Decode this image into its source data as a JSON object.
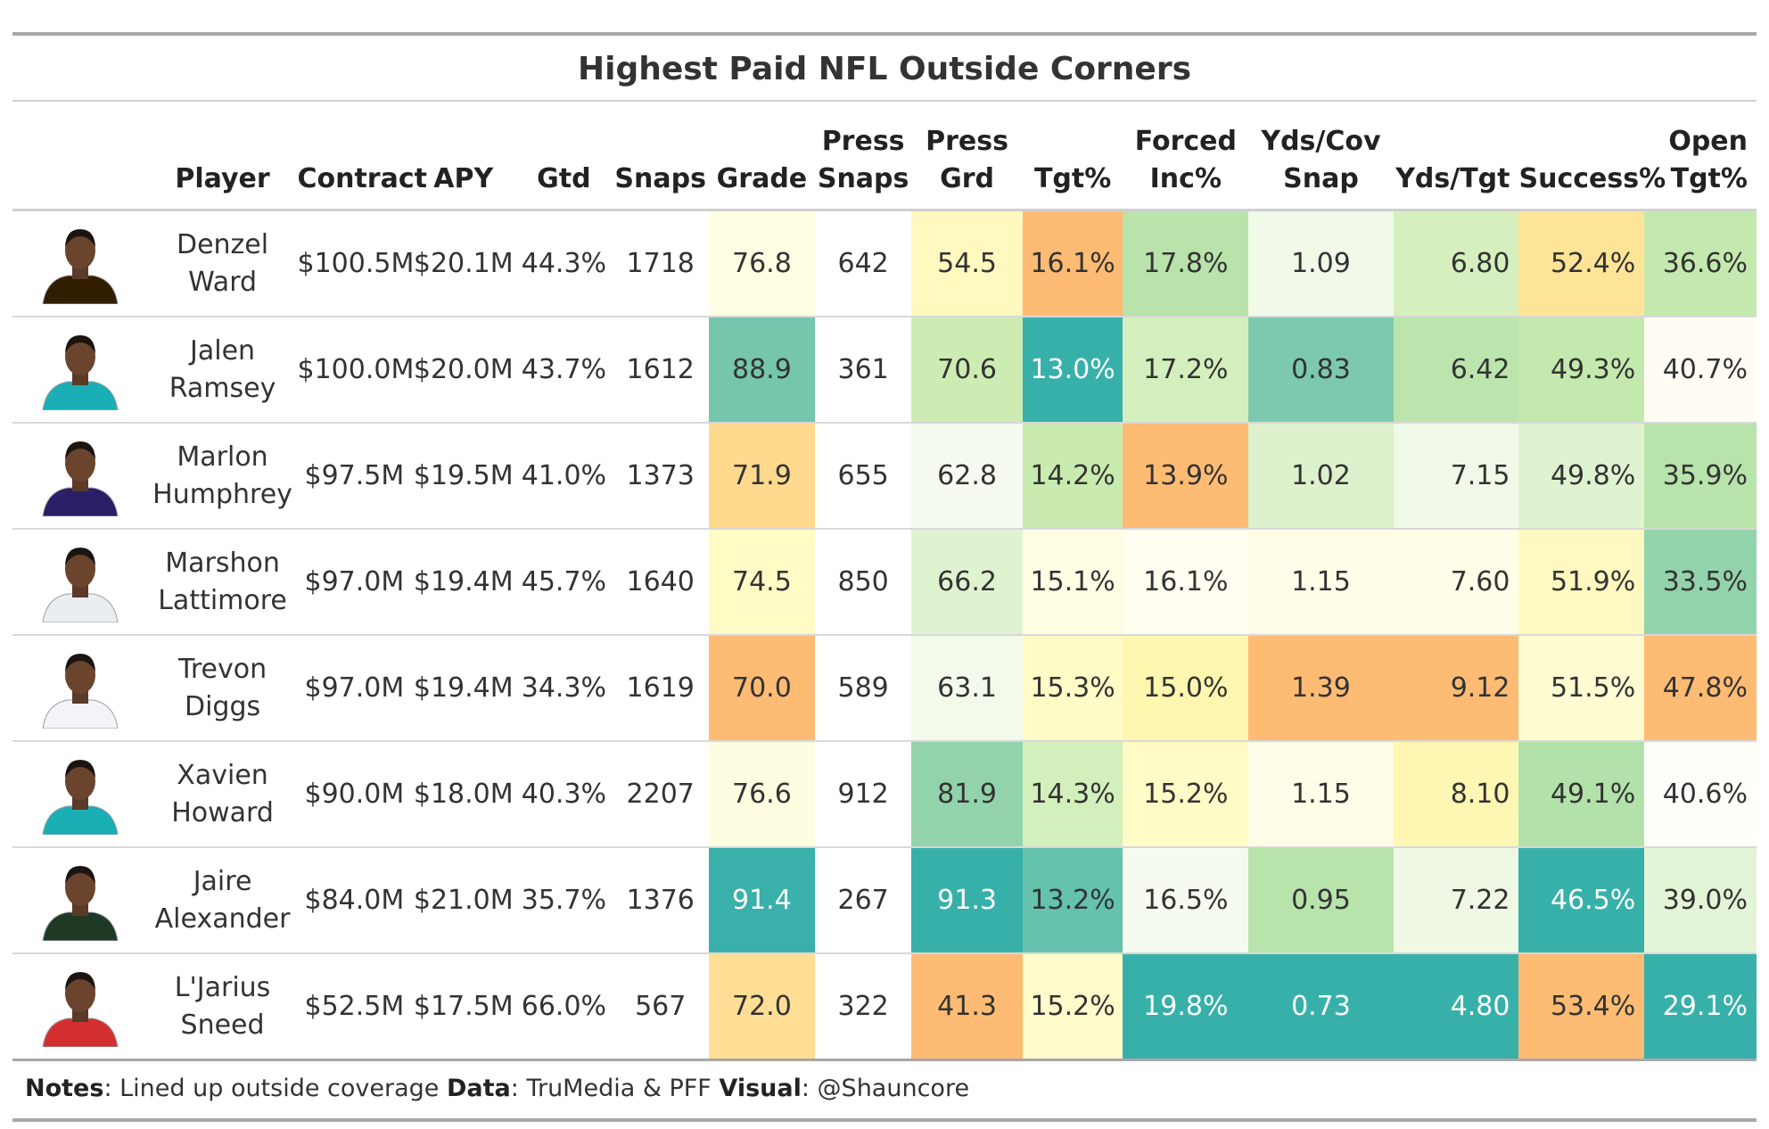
{
  "title": "Highest Paid NFL Outside Corners",
  "columns": [
    "Player",
    "Contract",
    "APY",
    "Gtd",
    "Snaps",
    "Grade",
    "Press\nSnaps",
    "Press\nGrd",
    "Tgt%",
    "Forced\nInc%",
    "Yds/Cov\nSnap",
    "Yds/Tgt",
    "Success%",
    "Open\nTgt%"
  ],
  "chart_data": {
    "type": "table",
    "title": "Highest Paid NFL Outside Corners",
    "rows": [
      {
        "player": "Denzel\nWard",
        "jersey": "#311d00",
        "contract": "$100.5M",
        "apy": "$20.1M",
        "gtd": "44.3%",
        "snaps": "1718",
        "grade": "76.8",
        "press_snaps": "642",
        "press_grd": "54.5",
        "tgt": "16.1%",
        "forced_inc": "17.8%",
        "yds_cov_snap": "1.09",
        "yds_tgt": "6.80",
        "success": "52.4%",
        "open_tgt": "36.6%"
      },
      {
        "player": "Jalen\nRamsey",
        "jersey": "#1aaeb5",
        "contract": "$100.0M",
        "apy": "$20.0M",
        "gtd": "43.7%",
        "snaps": "1612",
        "grade": "88.9",
        "press_snaps": "361",
        "press_grd": "70.6",
        "tgt": "13.0%",
        "forced_inc": "17.2%",
        "yds_cov_snap": "0.83",
        "yds_tgt": "6.42",
        "success": "49.3%",
        "open_tgt": "40.7%"
      },
      {
        "player": "Marlon\nHumphrey",
        "jersey": "#2a1f66",
        "contract": "$97.5M",
        "apy": "$19.5M",
        "gtd": "41.0%",
        "snaps": "1373",
        "grade": "71.9",
        "press_snaps": "655",
        "press_grd": "62.8",
        "tgt": "14.2%",
        "forced_inc": "13.9%",
        "yds_cov_snap": "1.02",
        "yds_tgt": "7.15",
        "success": "49.8%",
        "open_tgt": "35.9%"
      },
      {
        "player": "Marshon\nLattimore",
        "jersey": "#e9eef3",
        "contract": "$97.0M",
        "apy": "$19.4M",
        "gtd": "45.7%",
        "snaps": "1640",
        "grade": "74.5",
        "press_snaps": "850",
        "press_grd": "66.2",
        "tgt": "15.1%",
        "forced_inc": "16.1%",
        "yds_cov_snap": "1.15",
        "yds_tgt": "7.60",
        "success": "51.9%",
        "open_tgt": "33.5%"
      },
      {
        "player": "Trevon\nDiggs",
        "jersey": "#f2f4f7",
        "contract": "$97.0M",
        "apy": "$19.4M",
        "gtd": "34.3%",
        "snaps": "1619",
        "grade": "70.0",
        "press_snaps": "589",
        "press_grd": "63.1",
        "tgt": "15.3%",
        "forced_inc": "15.0%",
        "yds_cov_snap": "1.39",
        "yds_tgt": "9.12",
        "success": "51.5%",
        "open_tgt": "47.8%"
      },
      {
        "player": "Xavien\nHoward",
        "jersey": "#1aaeb5",
        "contract": "$90.0M",
        "apy": "$18.0M",
        "gtd": "40.3%",
        "snaps": "2207",
        "grade": "76.6",
        "press_snaps": "912",
        "press_grd": "81.9",
        "tgt": "14.3%",
        "forced_inc": "15.2%",
        "yds_cov_snap": "1.15",
        "yds_tgt": "8.10",
        "success": "49.1%",
        "open_tgt": "40.6%"
      },
      {
        "player": "Jaire\nAlexander",
        "jersey": "#1f3a24",
        "contract": "$84.0M",
        "apy": "$21.0M",
        "gtd": "35.7%",
        "snaps": "1376",
        "grade": "91.4",
        "press_snaps": "267",
        "press_grd": "91.3",
        "tgt": "13.2%",
        "forced_inc": "16.5%",
        "yds_cov_snap": "0.95",
        "yds_tgt": "7.22",
        "success": "46.5%",
        "open_tgt": "39.0%"
      },
      {
        "player": "L'Jarius\nSneed",
        "jersey": "#d32f2f",
        "contract": "$52.5M",
        "apy": "$17.5M",
        "gtd": "66.0%",
        "snaps": "567",
        "grade": "72.0",
        "press_snaps": "322",
        "press_grd": "41.3",
        "tgt": "15.2%",
        "forced_inc": "19.8%",
        "yds_cov_snap": "0.73",
        "yds_tgt": "4.80",
        "success": "53.4%",
        "open_tgt": "29.1%"
      }
    ]
  },
  "cell_colors": {
    "grade": [
      "#fffde3",
      "#75c6ad",
      "#fed98e",
      "#fffbc4",
      "#fdbb74",
      "#fffde1",
      "#39b0aa",
      "#fede94"
    ],
    "press_grd": [
      "#fff9c0",
      "#cdecb3",
      "#f5fbf0",
      "#e0f3d1",
      "#f2faeb",
      "#93d3ac",
      "#37b0aa",
      "#fdbb74"
    ],
    "tgt": [
      "#fdbb74",
      "#37b0aa",
      "#c9ebb0",
      "#fffde4",
      "#fffbc7",
      "#d3efbb",
      "#64c2ad",
      "#fffbcb"
    ],
    "forced_inc": [
      "#b9e3ab",
      "#d4efbd",
      "#fdbb74",
      "#fffef0",
      "#fff7b0",
      "#fffbc6",
      "#f5fbef",
      "#37b0aa"
    ],
    "yds_cov_snap": [
      "#f1f9e9",
      "#7dc9ad",
      "#ddf2cc",
      "#fffde8",
      "#fdbb74",
      "#fffde8",
      "#b8e3ab",
      "#37b0aa"
    ],
    "yds_tgt": [
      "#d6efbe",
      "#bce5ad",
      "#f0f9e7",
      "#fffee8",
      "#fdbb74",
      "#fdf7b3",
      "#eef8e4",
      "#37b0aa"
    ],
    "success": [
      "#fde497",
      "#c4e9ae",
      "#e0f3d0",
      "#fff9c0",
      "#fffcd2",
      "#b3e1aa",
      "#37b0aa",
      "#fdbb74"
    ],
    "open_tgt": [
      "#c4e9ae",
      "#fffdf3",
      "#b8e3ab",
      "#93d3ac",
      "#fdbb74",
      "#fffef8",
      "#e4f4d7",
      "#37b0aa"
    ]
  },
  "notes": {
    "notes_label": "Notes",
    "notes_text": ": Lined up outside coverage ",
    "data_label": "Data",
    "data_text": ": TruMedia & PFF ",
    "visual_label": "Visual",
    "visual_text": ": @Shauncore"
  }
}
